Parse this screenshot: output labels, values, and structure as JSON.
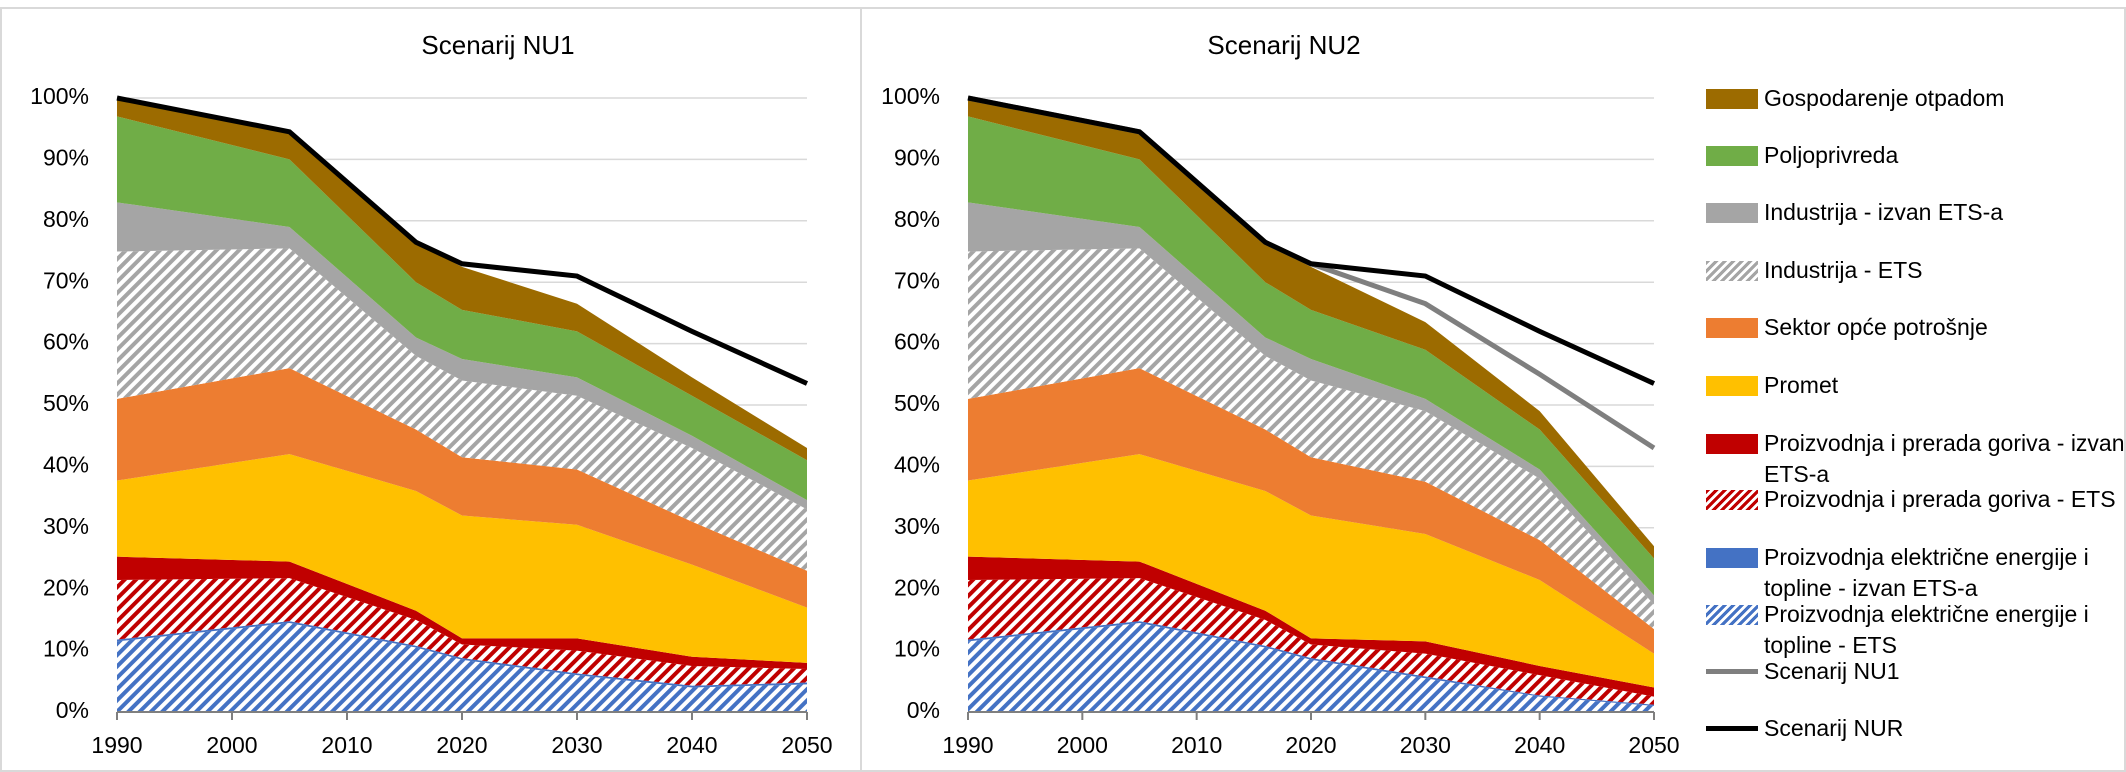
{
  "chart_data": [
    {
      "type": "area",
      "title": "Scenarij NU1",
      "x": [
        1990,
        2005,
        2016,
        2020,
        2030,
        2040,
        2050
      ],
      "xlim": [
        1990,
        2050
      ],
      "xticks": [
        1990,
        2000,
        2010,
        2020,
        2030,
        2040,
        2050
      ],
      "ylim": [
        0,
        100
      ],
      "yticks": [
        {
          "value": 0,
          "label": "0%"
        },
        {
          "value": 10,
          "label": "10%"
        },
        {
          "value": 20,
          "label": "20%"
        },
        {
          "value": 30,
          "label": "30%"
        },
        {
          "value": 40,
          "label": "40%"
        },
        {
          "value": 50,
          "label": "50%"
        },
        {
          "value": 60,
          "label": "60%"
        },
        {
          "value": 70,
          "label": "70%"
        },
        {
          "value": 80,
          "label": "80%"
        },
        {
          "value": 90,
          "label": "90%"
        },
        {
          "value": 100,
          "label": "100%"
        }
      ],
      "grid": true,
      "stacked": true,
      "series": [
        {
          "kind": "area",
          "color": "#4472c4",
          "hatch": true,
          "values": [
            11.5,
            14.5,
            10.5,
            8.5,
            6,
            4,
            4.5
          ]
        },
        {
          "kind": "area",
          "color": "#4472c4",
          "hatch": false,
          "values": [
            0.3,
            0.3,
            0.3,
            0.3,
            0.3,
            0.3,
            0.3
          ]
        },
        {
          "kind": "area",
          "color": "#c00000",
          "hatch": true,
          "values": [
            9.7,
            7,
            4.2,
            2.2,
            3.7,
            3.2,
            2.2
          ]
        },
        {
          "kind": "area",
          "color": "#c00000",
          "hatch": false,
          "values": [
            3.8,
            2.7,
            1.5,
            1,
            2,
            1.5,
            1
          ]
        },
        {
          "kind": "area",
          "color": "#ffc000",
          "hatch": false,
          "values": [
            12.4,
            17.5,
            19.5,
            20,
            18.5,
            15,
            9
          ]
        },
        {
          "kind": "area",
          "color": "#ed7d31",
          "hatch": false,
          "values": [
            13.3,
            14,
            10,
            9.5,
            9,
            7,
            6
          ]
        },
        {
          "kind": "area",
          "color": "#a5a5a5",
          "hatch": true,
          "values": [
            24,
            19.5,
            12,
            12.5,
            12,
            12,
            10
          ]
        },
        {
          "kind": "area",
          "color": "#a5a5a5",
          "hatch": false,
          "values": [
            8,
            3.5,
            3,
            3.5,
            3,
            2,
            1.5
          ]
        },
        {
          "kind": "area",
          "color": "#70ad47",
          "hatch": false,
          "values": [
            14,
            11,
            9,
            8,
            7.5,
            6.5,
            6.5
          ]
        },
        {
          "kind": "area",
          "color": "#9c6b00",
          "hatch": false,
          "values": [
            3,
            4.5,
            6.5,
            7,
            4.5,
            3,
            2
          ]
        },
        {
          "kind": "line",
          "color": "#000000",
          "values": [
            100,
            94.5,
            76.5,
            73,
            71,
            62,
            53.5
          ]
        }
      ]
    },
    {
      "type": "area",
      "title": "Scenarij NU2",
      "x": [
        1990,
        2005,
        2016,
        2020,
        2030,
        2040,
        2050
      ],
      "xlim": [
        1990,
        2050
      ],
      "xticks": [
        1990,
        2000,
        2010,
        2020,
        2030,
        2040,
        2050
      ],
      "ylim": [
        0,
        100
      ],
      "yticks": [
        {
          "value": 0,
          "label": "0%"
        },
        {
          "value": 10,
          "label": "10%"
        },
        {
          "value": 20,
          "label": "20%"
        },
        {
          "value": 30,
          "label": "30%"
        },
        {
          "value": 40,
          "label": "40%"
        },
        {
          "value": 50,
          "label": "50%"
        },
        {
          "value": 60,
          "label": "60%"
        },
        {
          "value": 70,
          "label": "70%"
        },
        {
          "value": 80,
          "label": "80%"
        },
        {
          "value": 90,
          "label": "90%"
        },
        {
          "value": 100,
          "label": "100%"
        }
      ],
      "grid": true,
      "stacked": true,
      "series": [
        {
          "kind": "area",
          "name": "Proizvodnja električne energije i topline - ETS",
          "color": "#4472c4",
          "hatch": true,
          "values": [
            11.5,
            14.5,
            10.5,
            8.5,
            5.5,
            2.5,
            1
          ]
        },
        {
          "kind": "area",
          "name": "Proizvodnja električne energije i topline - izvan ETS-a",
          "color": "#4472c4",
          "hatch": false,
          "values": [
            0.3,
            0.3,
            0.3,
            0.3,
            0.3,
            0.2,
            0.2
          ]
        },
        {
          "kind": "area",
          "name": "Proizvodnja i prerada goriva - ETS",
          "color": "#c00000",
          "hatch": true,
          "values": [
            9.7,
            7,
            4.2,
            2.2,
            3.7,
            3.3,
            1.3
          ]
        },
        {
          "kind": "area",
          "name": "Proizvodnja i prerada goriva - izvan ETS-a",
          "color": "#c00000",
          "hatch": false,
          "values": [
            3.8,
            2.7,
            1.5,
            1,
            2,
            1.5,
            1.5
          ]
        },
        {
          "kind": "area",
          "name": "Promet",
          "color": "#ffc000",
          "hatch": false,
          "values": [
            12.4,
            17.5,
            19.5,
            20,
            17.5,
            14,
            5.5
          ]
        },
        {
          "kind": "area",
          "name": "Sektor opće potrošnje",
          "color": "#ed7d31",
          "hatch": false,
          "values": [
            13.3,
            14,
            10,
            9.5,
            8.5,
            6.5,
            4
          ]
        },
        {
          "kind": "area",
          "name": "Industrija - ETS",
          "color": "#a5a5a5",
          "hatch": true,
          "values": [
            24,
            19.5,
            12,
            12.5,
            11.5,
            10,
            4
          ]
        },
        {
          "kind": "area",
          "name": "Industrija - izvan ETS-a",
          "color": "#a5a5a5",
          "hatch": false,
          "values": [
            8,
            3.5,
            3,
            3.5,
            2,
            1.5,
            1.5
          ]
        },
        {
          "kind": "area",
          "name": "Poljoprivreda",
          "color": "#70ad47",
          "hatch": false,
          "values": [
            14,
            11,
            9,
            8,
            8,
            6.5,
            6
          ]
        },
        {
          "kind": "area",
          "name": "Gospodarenje otpadom",
          "color": "#9c6b00",
          "hatch": false,
          "values": [
            3,
            4.5,
            6.5,
            7,
            4.5,
            3,
            2
          ]
        },
        {
          "kind": "line",
          "name": "Scenarij NU1",
          "color": "#7f7f7f",
          "values": [
            100,
            94.5,
            76.5,
            73,
            66.5,
            55,
            43
          ]
        },
        {
          "kind": "line",
          "name": "Scenarij NUR",
          "color": "#000000",
          "values": [
            100,
            94.5,
            76.5,
            73,
            71,
            62,
            53.5
          ]
        }
      ]
    }
  ]
}
